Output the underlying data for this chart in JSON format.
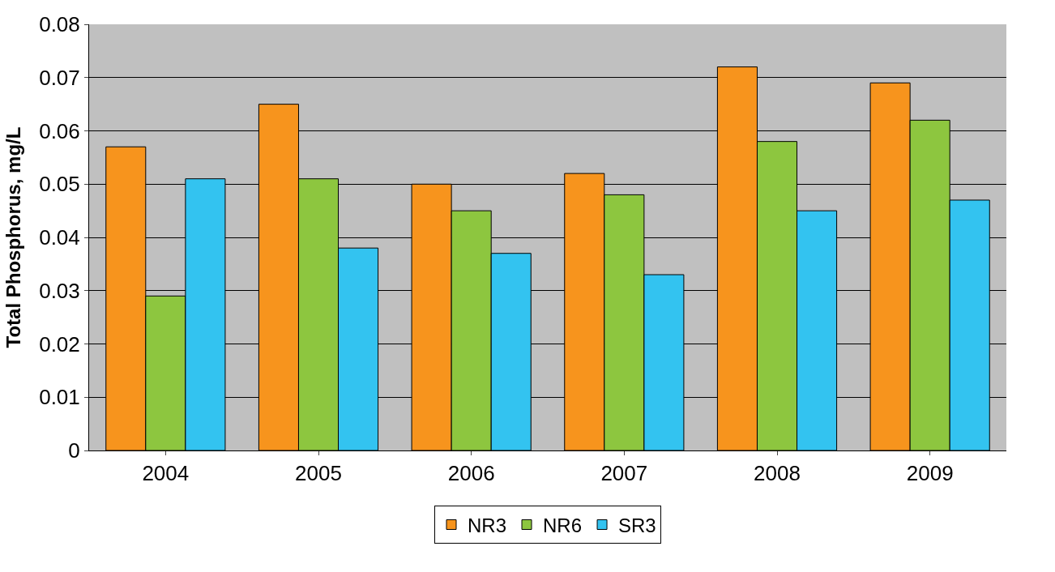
{
  "chart_data": {
    "type": "bar",
    "ylabel": "Total Phosphorus, mg/L",
    "categories": [
      "2004",
      "2005",
      "2006",
      "2007",
      "2008",
      "2009"
    ],
    "series": [
      {
        "name": "NR3",
        "color": "#f7941d",
        "values": [
          0.057,
          0.065,
          0.05,
          0.052,
          0.072,
          0.069
        ]
      },
      {
        "name": "NR6",
        "color": "#8dc63f",
        "values": [
          0.029,
          0.051,
          0.045,
          0.048,
          0.058,
          0.062
        ]
      },
      {
        "name": "SR3",
        "color": "#33c3f0",
        "values": [
          0.051,
          0.038,
          0.037,
          0.033,
          0.045,
          0.047
        ]
      }
    ],
    "ylim": [
      0,
      0.08
    ],
    "yticks": [
      0,
      0.01,
      0.02,
      0.03,
      0.04,
      0.05,
      0.06,
      0.07,
      0.08
    ],
    "grid": "y",
    "legend": "bottom"
  }
}
